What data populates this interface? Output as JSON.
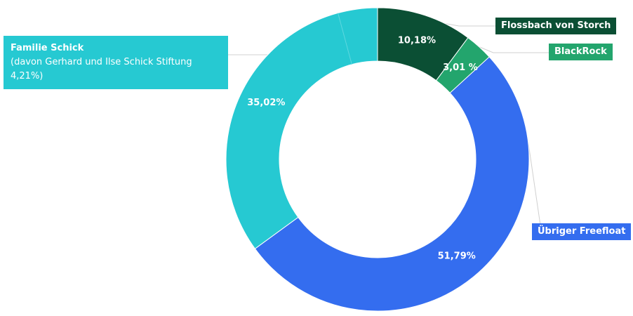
{
  "chart_data": {
    "type": "pie",
    "variant": "donut",
    "title": "",
    "colors": {
      "flossbach": "#0b4f34",
      "blackrock": "#23a56d",
      "freefloat": "#346def",
      "schick": "#26c9d2",
      "leader": "#d0d0d0",
      "label_text": "#ffffff"
    },
    "slices": [
      {
        "key": "flossbach",
        "legend_label": "Flossbach von Storch",
        "value": 10.18,
        "label": "10,18%"
      },
      {
        "key": "blackrock",
        "legend_label": "BlackRock",
        "value": 3.01,
        "label": "3,01 %"
      },
      {
        "key": "freefloat",
        "legend_label": "Übriger Freefloat",
        "value": 51.79,
        "label": "51,79%"
      },
      {
        "key": "schick",
        "legend_label": "Familie Schick",
        "legend_sublabel": "(davon Gerhard und Ilse Schick Stiftung 4,21%)",
        "value": 35.02,
        "label": "35,02%",
        "sub_value": 4.21
      }
    ]
  }
}
